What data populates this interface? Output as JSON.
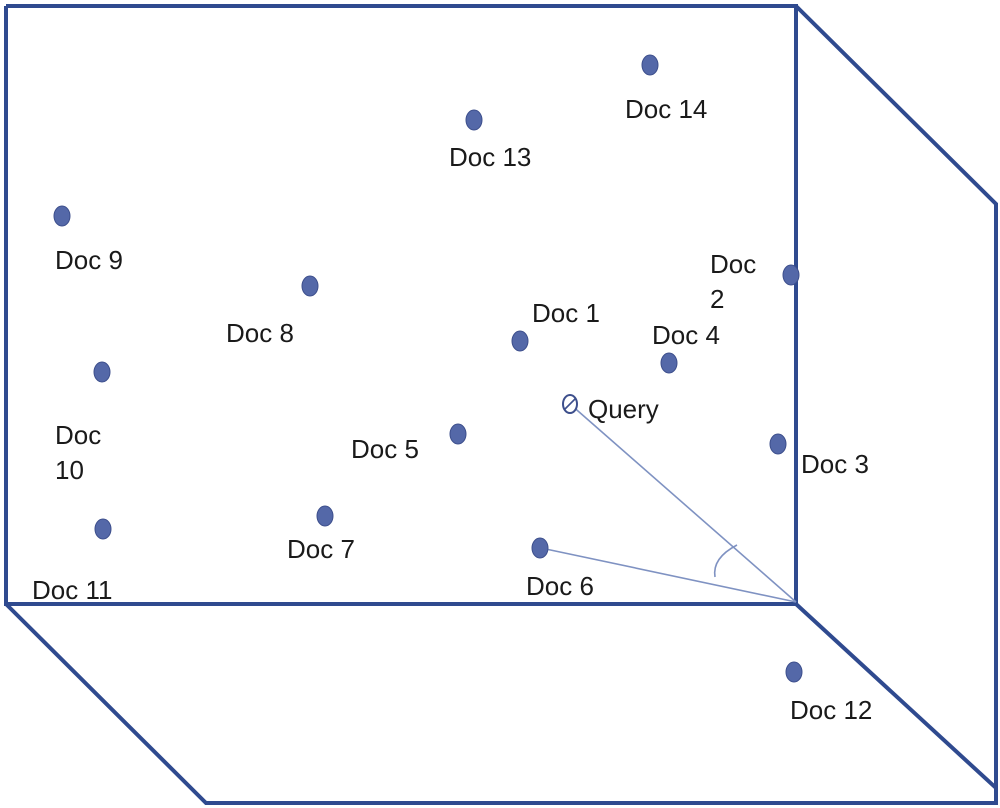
{
  "colors": {
    "edge": "#2f4a8f",
    "dot": "#5468a8",
    "vector": "#7f92c2"
  },
  "query": {
    "label": "Query"
  },
  "docs": [
    {
      "id": "doc-1",
      "lines": [
        "Doc 1"
      ]
    },
    {
      "id": "doc-2",
      "lines": [
        "Doc",
        "2"
      ]
    },
    {
      "id": "doc-3",
      "lines": [
        "Doc 3"
      ]
    },
    {
      "id": "doc-4",
      "lines": [
        "Doc 4"
      ]
    },
    {
      "id": "doc-5",
      "lines": [
        "Doc 5"
      ]
    },
    {
      "id": "doc-6",
      "lines": [
        "Doc 6"
      ]
    },
    {
      "id": "doc-7",
      "lines": [
        "Doc 7"
      ]
    },
    {
      "id": "doc-8",
      "lines": [
        "Doc 8"
      ]
    },
    {
      "id": "doc-9",
      "lines": [
        "Doc 9"
      ]
    },
    {
      "id": "doc-10",
      "lines": [
        "Doc",
        "10"
      ]
    },
    {
      "id": "doc-11",
      "lines": [
        "Doc 11"
      ]
    },
    {
      "id": "doc-12",
      "lines": [
        "Doc 12"
      ]
    },
    {
      "id": "doc-13",
      "lines": [
        "Doc 13"
      ]
    },
    {
      "id": "doc-14",
      "lines": [
        "Doc 14"
      ]
    }
  ]
}
